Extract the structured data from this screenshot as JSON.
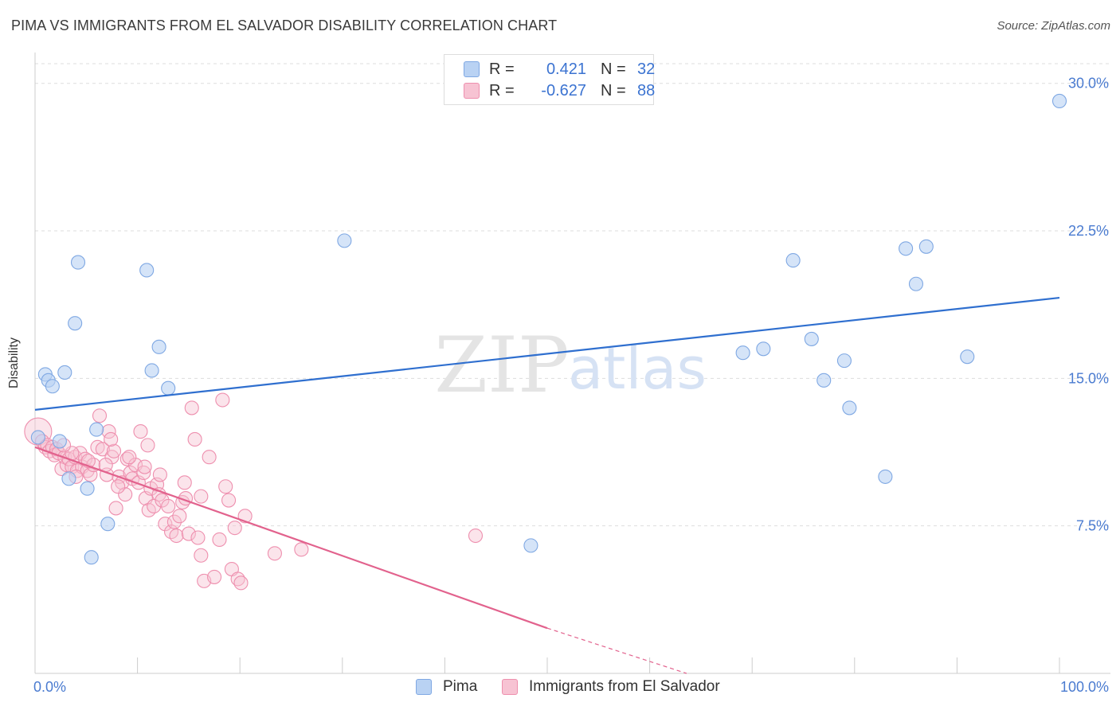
{
  "header": {
    "title": "PIMA VS IMMIGRANTS FROM EL SALVADOR DISABILITY CORRELATION CHART",
    "source": "Source: ZipAtlas.com"
  },
  "watermark": {
    "zip": "ZIP",
    "atlas": "atlas"
  },
  "legend": {
    "pima": {
      "r_label": "R =",
      "r_value": "0.421",
      "n_label": "N =",
      "n_value": "32"
    },
    "salvador": {
      "r_label": "R =",
      "r_value": "-0.627",
      "n_label": "N =",
      "n_value": "88"
    }
  },
  "colors": {
    "pima_fill": "#b9d2f3",
    "pima_stroke": "#7fa8e3",
    "pima_line": "#2f6fcf",
    "salvador_fill": "#f7c3d3",
    "salvador_stroke": "#ee8fae",
    "salvador_line": "#e2628d",
    "grid": "#dddddd",
    "tick_text": "#4a7bd0"
  },
  "chart_data": {
    "type": "scatter",
    "title": "PIMA VS IMMIGRANTS FROM EL SALVADOR DISABILITY CORRELATION CHART",
    "xlabel": "",
    "ylabel": "Disability",
    "xlim": [
      0,
      100
    ],
    "ylim": [
      0,
      31
    ],
    "x_tick_labels": [
      "0.0%",
      "100.0%"
    ],
    "y_ticks": [
      7.5,
      15.0,
      22.5,
      30.0
    ],
    "y_tick_labels": [
      "7.5%",
      "15.0%",
      "22.5%",
      "30.0%"
    ],
    "grid": "horizontal dashed",
    "legend_position": "top-center",
    "series": [
      {
        "name": "Pima",
        "r": 0.421,
        "n": 32,
        "trend": {
          "x": [
            0,
            100
          ],
          "y": [
            13.4,
            19.1
          ]
        },
        "points": [
          [
            0.3,
            12.0
          ],
          [
            1.0,
            15.2
          ],
          [
            1.3,
            14.9
          ],
          [
            1.7,
            14.6
          ],
          [
            2.4,
            11.8
          ],
          [
            2.9,
            15.3
          ],
          [
            3.3,
            9.9
          ],
          [
            3.9,
            17.8
          ],
          [
            4.2,
            20.9
          ],
          [
            5.1,
            9.4
          ],
          [
            5.5,
            5.9
          ],
          [
            6.0,
            12.4
          ],
          [
            7.1,
            7.6
          ],
          [
            10.9,
            20.5
          ],
          [
            11.4,
            15.4
          ],
          [
            12.1,
            16.6
          ],
          [
            13.0,
            14.5
          ],
          [
            30.2,
            22.0
          ],
          [
            48.4,
            6.5
          ],
          [
            69.1,
            16.3
          ],
          [
            71.1,
            16.5
          ],
          [
            74.0,
            21.0
          ],
          [
            75.8,
            17.0
          ],
          [
            77.0,
            14.9
          ],
          [
            79.0,
            15.9
          ],
          [
            79.5,
            13.5
          ],
          [
            83.0,
            10.0
          ],
          [
            85.0,
            21.6
          ],
          [
            86.0,
            19.8
          ],
          [
            87.0,
            21.7
          ],
          [
            91.0,
            16.1
          ],
          [
            100.0,
            29.1
          ]
        ]
      },
      {
        "name": "Immigrants from El Salvador",
        "r": -0.627,
        "n": 88,
        "trend": {
          "x": [
            0,
            50
          ],
          "y": [
            11.5,
            2.3
          ]
        },
        "trend_dashed": {
          "x": [
            50,
            63.6
          ],
          "y": [
            2.3,
            0.0
          ]
        },
        "points": [
          [
            0.3,
            12.3
          ],
          [
            0.7,
            11.8
          ],
          [
            1.0,
            11.5
          ],
          [
            1.2,
            11.6
          ],
          [
            1.4,
            11.3
          ],
          [
            1.7,
            11.5
          ],
          [
            1.9,
            11.1
          ],
          [
            2.1,
            11.4
          ],
          [
            2.3,
            11.2
          ],
          [
            2.6,
            10.4
          ],
          [
            2.9,
            11.0
          ],
          [
            3.1,
            10.6
          ],
          [
            3.3,
            10.9
          ],
          [
            3.6,
            10.5
          ],
          [
            3.9,
            11.0
          ],
          [
            4.1,
            10.3
          ],
          [
            4.4,
            11.2
          ],
          [
            4.6,
            10.5
          ],
          [
            4.9,
            10.9
          ],
          [
            5.1,
            10.3
          ],
          [
            5.4,
            10.1
          ],
          [
            5.7,
            10.6
          ],
          [
            6.1,
            11.5
          ],
          [
            6.3,
            13.1
          ],
          [
            6.6,
            11.4
          ],
          [
            7.0,
            10.1
          ],
          [
            7.2,
            12.3
          ],
          [
            7.5,
            11.0
          ],
          [
            7.7,
            11.3
          ],
          [
            7.9,
            8.4
          ],
          [
            8.2,
            10.0
          ],
          [
            8.5,
            9.7
          ],
          [
            8.8,
            9.1
          ],
          [
            9.0,
            10.9
          ],
          [
            9.3,
            10.2
          ],
          [
            9.5,
            9.9
          ],
          [
            9.8,
            10.6
          ],
          [
            10.1,
            9.7
          ],
          [
            10.3,
            12.3
          ],
          [
            10.6,
            10.2
          ],
          [
            10.8,
            8.9
          ],
          [
            11.1,
            8.3
          ],
          [
            11.3,
            9.4
          ],
          [
            11.6,
            8.5
          ],
          [
            11.9,
            9.6
          ],
          [
            12.1,
            9.1
          ],
          [
            12.4,
            8.8
          ],
          [
            12.7,
            7.6
          ],
          [
            13.0,
            8.5
          ],
          [
            13.3,
            7.2
          ],
          [
            13.6,
            7.7
          ],
          [
            13.8,
            7.0
          ],
          [
            14.1,
            8.0
          ],
          [
            14.4,
            8.7
          ],
          [
            14.7,
            8.9
          ],
          [
            15.0,
            7.1
          ],
          [
            15.3,
            13.5
          ],
          [
            15.6,
            11.9
          ],
          [
            15.9,
            6.9
          ],
          [
            16.2,
            6.0
          ],
          [
            16.5,
            4.7
          ],
          [
            17.0,
            11.0
          ],
          [
            17.5,
            4.9
          ],
          [
            18.0,
            6.8
          ],
          [
            18.3,
            13.9
          ],
          [
            18.6,
            9.5
          ],
          [
            18.9,
            8.8
          ],
          [
            19.2,
            5.3
          ],
          [
            19.5,
            7.4
          ],
          [
            19.8,
            4.8
          ],
          [
            20.1,
            4.6
          ],
          [
            20.5,
            8.0
          ],
          [
            23.4,
            6.1
          ],
          [
            26.0,
            6.3
          ],
          [
            43.0,
            7.0
          ],
          [
            9.2,
            11.0
          ],
          [
            10.7,
            10.5
          ],
          [
            12.2,
            10.1
          ],
          [
            6.9,
            10.6
          ],
          [
            5.2,
            10.8
          ],
          [
            3.6,
            11.2
          ],
          [
            2.8,
            11.6
          ],
          [
            16.2,
            9.0
          ],
          [
            14.6,
            9.7
          ],
          [
            8.1,
            9.5
          ],
          [
            7.4,
            11.9
          ],
          [
            11.0,
            11.6
          ],
          [
            4.0,
            10.0
          ]
        ]
      }
    ]
  },
  "bottom_legend": {
    "pima": "Pima",
    "salvador": "Immigrants from El Salvador"
  }
}
